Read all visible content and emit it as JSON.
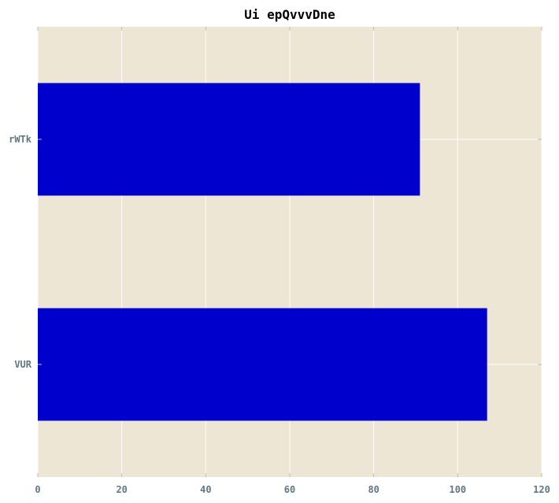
{
  "chart_data": {
    "type": "bar",
    "orientation": "horizontal",
    "title": "Ui  epQvvvDne",
    "xlabel": "",
    "ylabel": "",
    "categories": [
      "rWTk",
      "VUR"
    ],
    "values": [
      91,
      107
    ],
    "xlim": [
      0,
      120
    ],
    "xticks": [
      0,
      20,
      40,
      60,
      80,
      100,
      120
    ],
    "grid": true,
    "legend": "none",
    "colors": {
      "bar": "#0000cc",
      "plot_background": "#eee6d5",
      "grid": "#ffffff",
      "tick_label": "#5f7684",
      "title": "#000000"
    }
  }
}
